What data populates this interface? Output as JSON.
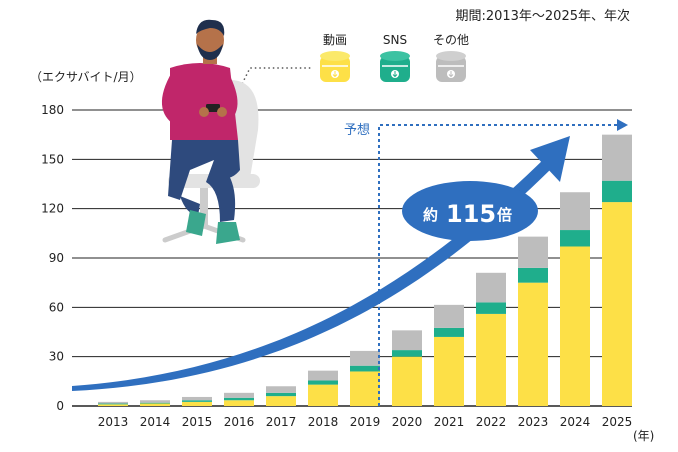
{
  "chart_data": {
    "type": "bar",
    "stacked": true,
    "period_note": "期間:2013年～2025年、年次",
    "ylabel": "（エクサバイト/月）",
    "xlabel": "(年)",
    "ylim": [
      0,
      180
    ],
    "yticks": [
      0,
      30,
      60,
      90,
      120,
      150,
      180
    ],
    "categories": [
      "2013",
      "2014",
      "2015",
      "2016",
      "2017",
      "2018",
      "2019",
      "2020",
      "2021",
      "2022",
      "2023",
      "2024",
      "2025"
    ],
    "series": [
      {
        "name": "動画",
        "color": "#fde047",
        "values": [
          1,
          1.5,
          2.5,
          3.5,
          6,
          13,
          21,
          30,
          42,
          56,
          75,
          97,
          124
        ]
      },
      {
        "name": "SNS",
        "color": "#1fae8c",
        "values": [
          0.5,
          0.5,
          1,
          1.5,
          2,
          2.5,
          3.5,
          4,
          5.5,
          7,
          9,
          10,
          13
        ]
      },
      {
        "name": "その他",
        "color": "#bdbdbd",
        "values": [
          1,
          1.5,
          2,
          3,
          4,
          6,
          9,
          12,
          14,
          18,
          19,
          23,
          28
        ]
      }
    ],
    "annotations": {
      "forecast_label": "予想",
      "growth_prefix": "約",
      "growth_value": "115",
      "growth_suffix": "倍"
    },
    "colors": {
      "arrow": "#2f6fbf",
      "forecast_line": "#2f6fbf",
      "person_shirt": "#c0266a",
      "person_jeans": "#2e4a7d",
      "chair": "#e3e3e3"
    }
  }
}
